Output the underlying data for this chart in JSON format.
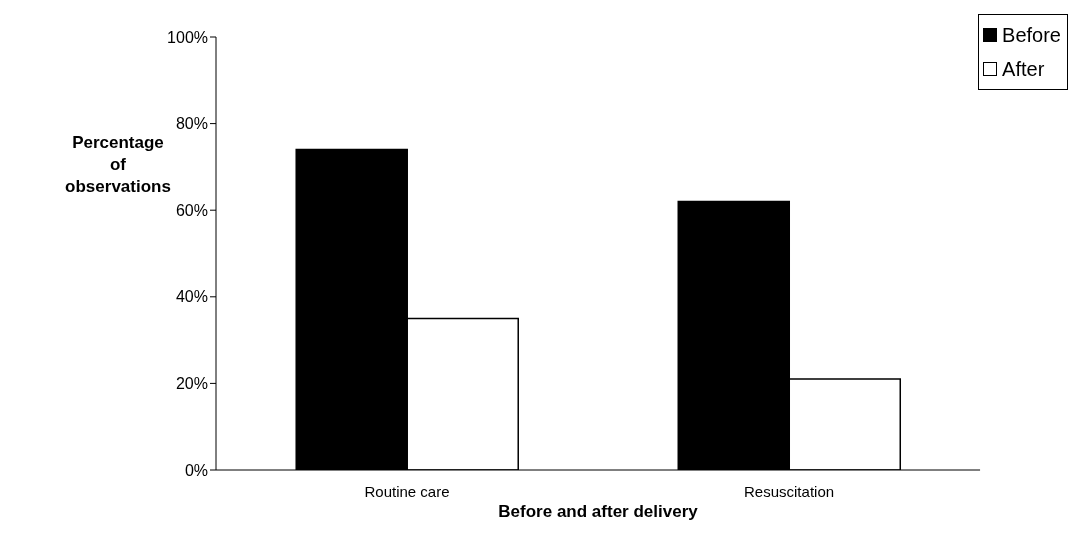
{
  "chart_data": {
    "type": "bar",
    "xlabel": "Before and after delivery",
    "ylabel": "Percentage of observations",
    "categories": [
      "Routine care",
      "Resuscitation"
    ],
    "series": [
      {
        "name": "Before",
        "color": "#000000",
        "values": [
          74,
          62
        ]
      },
      {
        "name": "After",
        "color": "#ffffff",
        "values": [
          35,
          21
        ]
      }
    ],
    "ylim": [
      0,
      100
    ],
    "yticks": [
      {
        "value": 0,
        "label": "0%"
      },
      {
        "value": 20,
        "label": "20%"
      },
      {
        "value": 40,
        "label": "40%"
      },
      {
        "value": 60,
        "label": "60%"
      },
      {
        "value": 80,
        "label": "80%"
      },
      {
        "value": 100,
        "label": "100%"
      }
    ],
    "grid": false,
    "legend": "top right"
  }
}
